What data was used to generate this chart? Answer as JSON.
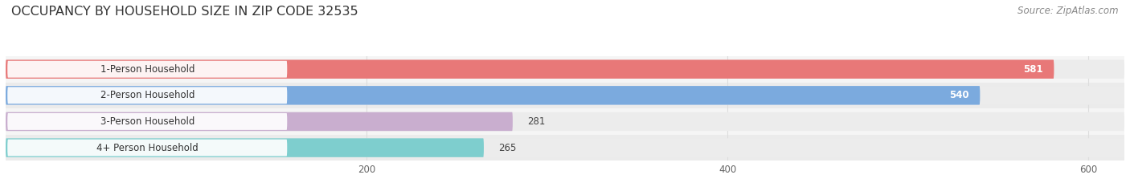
{
  "title": "OCCUPANCY BY HOUSEHOLD SIZE IN ZIP CODE 32535",
  "source": "Source: ZipAtlas.com",
  "categories": [
    "1-Person Household",
    "2-Person Household",
    "3-Person Household",
    "4+ Person Household"
  ],
  "values": [
    581,
    540,
    281,
    265
  ],
  "bar_colors": [
    "#E87878",
    "#7BAADE",
    "#C9AECF",
    "#7ECECE"
  ],
  "xlim_max": 620,
  "xticks": [
    200,
    400,
    600
  ],
  "title_fontsize": 11.5,
  "label_fontsize": 8.5,
  "value_fontsize": 8.5,
  "source_fontsize": 8.5,
  "background_color": "#FFFFFF",
  "bar_track_color": "#ECECEC",
  "bar_height": 0.72,
  "white_label_bg": "#FFFFFF",
  "grid_color": "#DDDDDD",
  "row_sep_color": "#FFFFFF"
}
